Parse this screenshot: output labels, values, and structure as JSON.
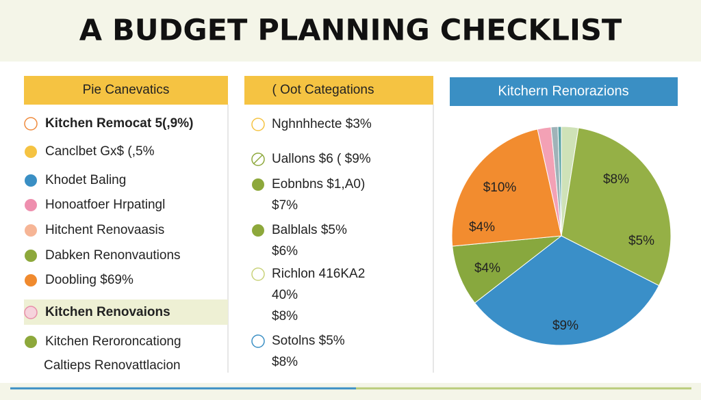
{
  "header": {
    "title": "A BUDGET PLANNING CHECKLIST"
  },
  "left": {
    "heading": "Pie Canevatics",
    "items": [
      {
        "text": "Kitchen Remocat 5(,9%)",
        "color": "#ef8a3c",
        "style": "outline"
      },
      {
        "text": "Canclbet Gx$ (,5%",
        "color": "#f5c342",
        "style": "fill"
      },
      {
        "text": "Khodet Baling",
        "color": "#3a8fc4",
        "style": "fill"
      },
      {
        "text": "Honoatfoer Hrpatingl",
        "color": "#ee8fae",
        "style": "fill"
      },
      {
        "text": "Hitchent Renovaasis",
        "color": "#f6b596",
        "style": "fill"
      },
      {
        "text": "Dabken Renonvautions",
        "color": "#8da83b",
        "style": "fill"
      },
      {
        "text": "Doobling $69%",
        "color": "#f08a2e",
        "style": "fill"
      },
      {
        "text": "Kitchen Renovaions",
        "color": "#e88ea9",
        "style": "highlight"
      },
      {
        "text": "Kitchen Reroroncationg",
        "color": "#8da83b",
        "style": "fill"
      },
      {
        "text": "Caltieps Renovattlacion",
        "color": null,
        "style": "none"
      }
    ]
  },
  "middle": {
    "heading": "( Oot Categations",
    "items": [
      {
        "lines": [
          "Nghnhhecte $3%"
        ],
        "color": "#f5c342",
        "style": "outline"
      },
      {
        "lines": [
          "Uallons $6 ( $9%"
        ],
        "color": "#8da83b",
        "style": "leaf"
      },
      {
        "lines": [
          "Eobnbns $1,A0)",
          "$7%"
        ],
        "color": "#8da83b",
        "style": "fill"
      },
      {
        "lines": [
          "Balblals $5%",
          "$6%"
        ],
        "color": "#8da83b",
        "style": "fill"
      },
      {
        "lines": [
          "Richlon 416KA2",
          "40%",
          "$8%"
        ],
        "color": "#c9d27a",
        "style": "outline"
      },
      {
        "lines": [
          "Sotolns $5%",
          "$8%"
        ],
        "color": "#3a8fc4",
        "style": "outline"
      }
    ]
  },
  "right": {
    "heading": "Kitchern Renorazions",
    "chart_data": {
      "type": "pie",
      "slices": [
        {
          "value": 2.5,
          "color": "#cfe2b8"
        },
        {
          "value": 30,
          "color": "#95b046"
        },
        {
          "value": 32,
          "color": "#3a8fc8"
        },
        {
          "value": 9,
          "color": "#88a83e"
        },
        {
          "value": 23,
          "color": "#f28c2f"
        },
        {
          "value": 2,
          "color": "#f3a1b5"
        },
        {
          "value": 1,
          "color": "#9fb3b8"
        },
        {
          "value": 0.5,
          "color": "#5aa3a6"
        }
      ],
      "annotations": [
        "$8%",
        "$5%",
        "$9%",
        "$4%",
        "$10%",
        "$4%"
      ]
    }
  }
}
